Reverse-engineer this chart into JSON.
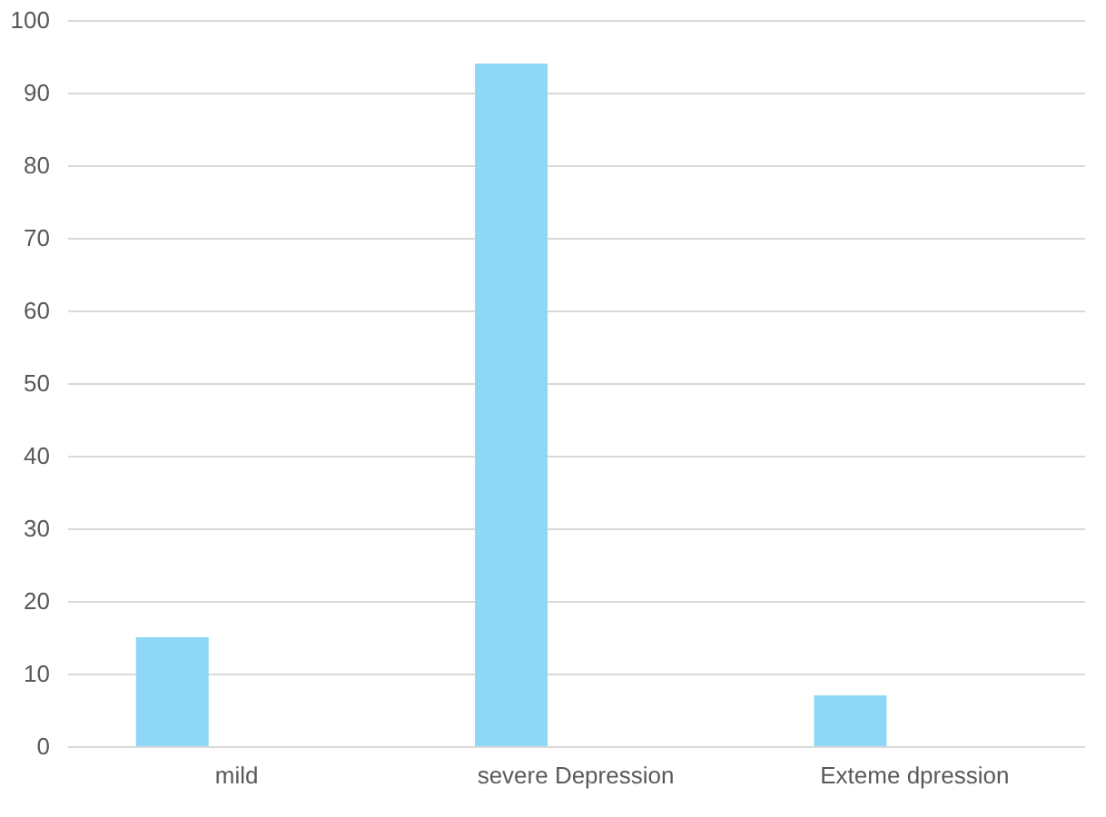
{
  "chart_data": {
    "type": "bar",
    "categories": [
      "mild",
      "severe Depression",
      "Exteme dpression"
    ],
    "values": [
      15,
      94,
      7
    ],
    "color": "#8ed8f6",
    "ylim": [
      0,
      100
    ],
    "yticks": [
      0,
      10,
      20,
      30,
      40,
      50,
      60,
      70,
      80,
      90,
      100
    ],
    "grid": "y"
  }
}
